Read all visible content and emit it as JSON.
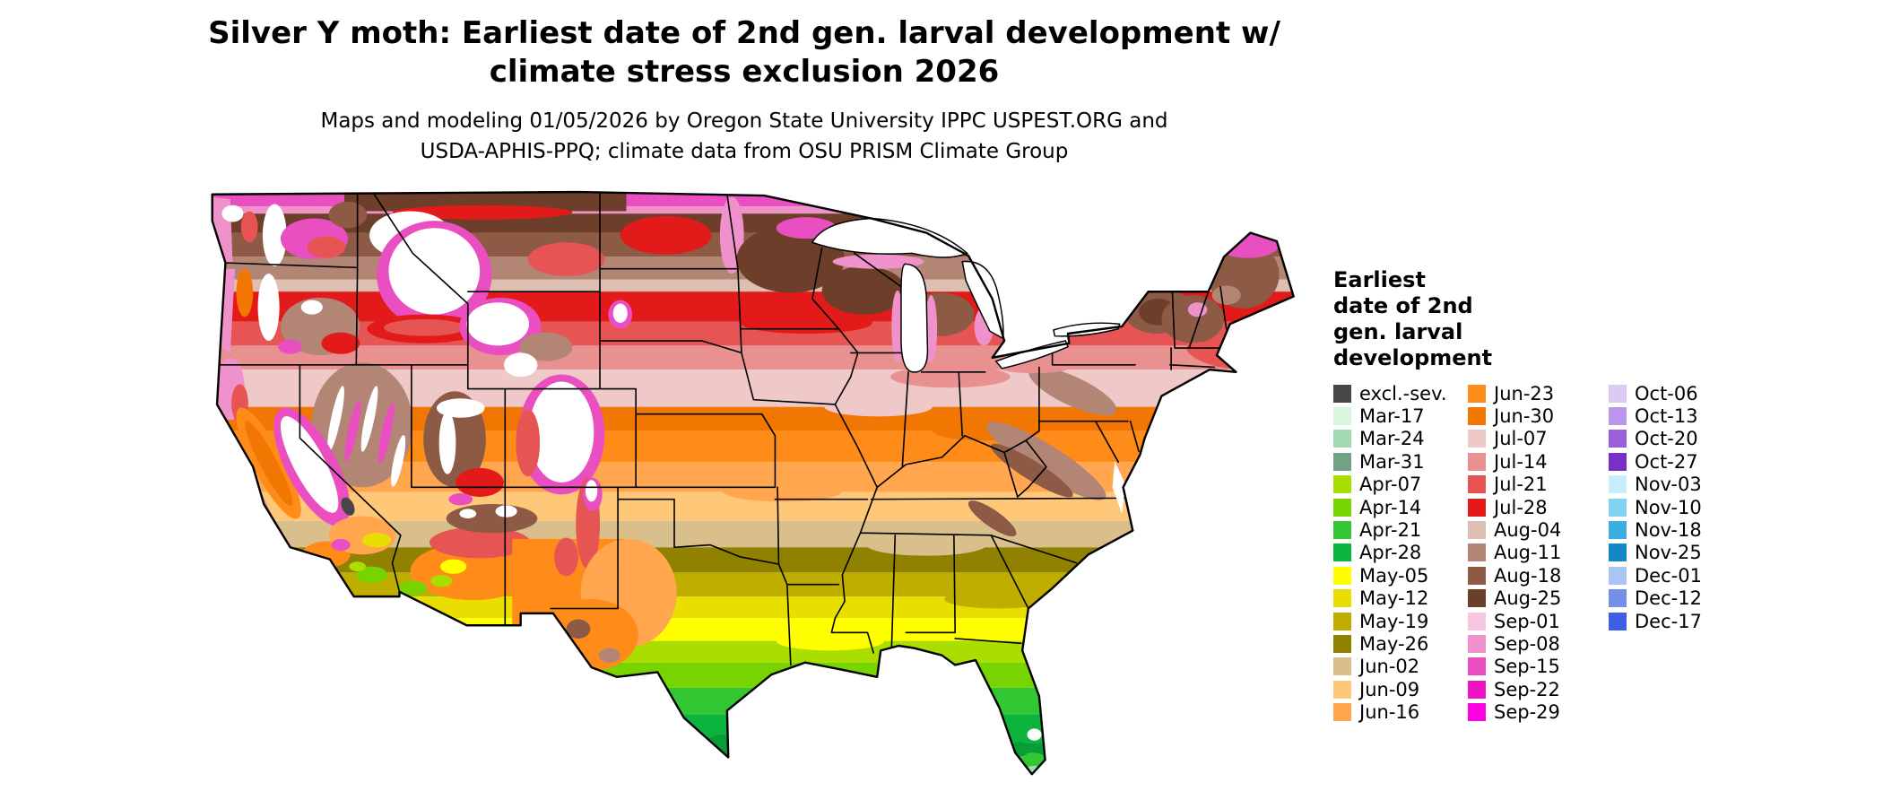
{
  "title": {
    "line1": "Silver Y moth: Earliest date of 2nd gen. larval development w/",
    "line2": "climate stress exclusion 2026"
  },
  "subtitle": {
    "line1": "Maps and modeling 01/05/2026 by Oregon State University IPPC USPEST.ORG and",
    "line2": "USDA-APHIS-PPQ; climate data from OSU PRISM Climate Group"
  },
  "map": {
    "region": "Contiguous United States",
    "type": "choropleth raster of earliest date of 2nd generation larval development"
  },
  "legend": {
    "title_lines": [
      "Earliest",
      "date of 2nd",
      "gen. larval",
      "development"
    ],
    "columns": [
      {
        "items": [
          {
            "label": "excl.-sev.",
            "color": "#474747"
          },
          {
            "label": "Mar-17",
            "color": "#d9f5dc"
          },
          {
            "label": "Mar-24",
            "color": "#a3d9b1"
          },
          {
            "label": "Mar-31",
            "color": "#6fa383"
          },
          {
            "label": "Apr-07",
            "color": "#aadd00"
          },
          {
            "label": "Apr-14",
            "color": "#77d400"
          },
          {
            "label": "Apr-21",
            "color": "#33c733"
          },
          {
            "label": "Apr-28",
            "color": "#0cb33c"
          },
          {
            "label": "May-05",
            "color": "#ffff00"
          },
          {
            "label": "May-12",
            "color": "#e8df00"
          },
          {
            "label": "May-19",
            "color": "#bfad00"
          },
          {
            "label": "May-26",
            "color": "#918100"
          },
          {
            "label": "Jun-02",
            "color": "#d9bf8c"
          },
          {
            "label": "Jun-09",
            "color": "#ffc878"
          },
          {
            "label": "Jun-16",
            "color": "#ffa64f"
          }
        ]
      },
      {
        "items": [
          {
            "label": "Jun-23",
            "color": "#ff8b19"
          },
          {
            "label": "Jun-30",
            "color": "#f27602"
          },
          {
            "label": "Jul-07",
            "color": "#efc8c8"
          },
          {
            "label": "Jul-14",
            "color": "#e99191"
          },
          {
            "label": "Jul-21",
            "color": "#e65454"
          },
          {
            "label": "Jul-28",
            "color": "#e31a1a"
          },
          {
            "label": "Aug-04",
            "color": "#ddbfb2"
          },
          {
            "label": "Aug-11",
            "color": "#b28574"
          },
          {
            "label": "Aug-18",
            "color": "#8c5a45"
          },
          {
            "label": "Aug-25",
            "color": "#6d3e29"
          },
          {
            "label": "Sep-01",
            "color": "#f6c7de"
          },
          {
            "label": "Sep-08",
            "color": "#ef92cb"
          },
          {
            "label": "Sep-15",
            "color": "#ea4fc2"
          },
          {
            "label": "Sep-22",
            "color": "#ef14c3"
          },
          {
            "label": "Sep-29",
            "color": "#ff00e1"
          }
        ]
      },
      {
        "items": [
          {
            "label": "Oct-06",
            "color": "#dccaf2"
          },
          {
            "label": "Oct-13",
            "color": "#bb95ea"
          },
          {
            "label": "Oct-20",
            "color": "#9a60da"
          },
          {
            "label": "Oct-27",
            "color": "#7c2fc8"
          },
          {
            "label": "Nov-03",
            "color": "#c5edfa"
          },
          {
            "label": "Nov-10",
            "color": "#82d2f2"
          },
          {
            "label": "Nov-18",
            "color": "#3aaede"
          },
          {
            "label": "Nov-25",
            "color": "#1187c4"
          },
          {
            "label": "Dec-01",
            "color": "#abc4f6"
          },
          {
            "label": "Dec-12",
            "color": "#7290ea"
          },
          {
            "label": "Dec-17",
            "color": "#3c5fe6"
          }
        ]
      }
    ]
  }
}
